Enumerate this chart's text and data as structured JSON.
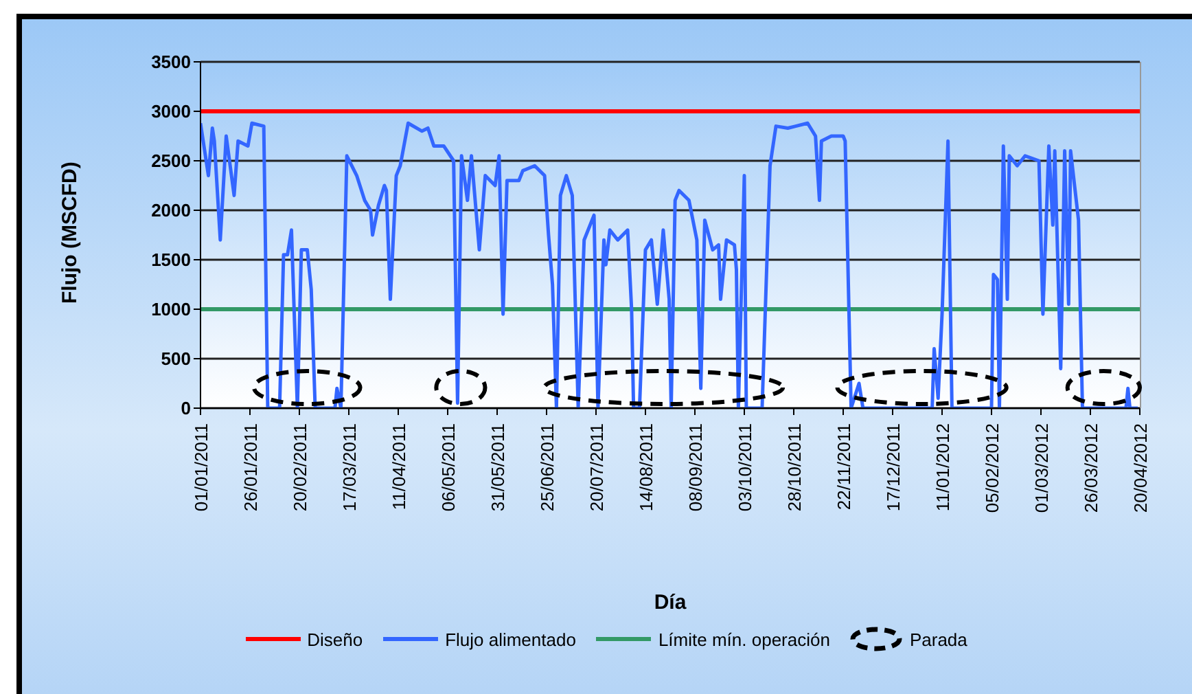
{
  "chart_data": {
    "type": "line",
    "xlabel": "Día",
    "ylabel": "Flujo  (MSCFD)",
    "x": [
      "2011-01-01",
      "2011-01-05",
      "2011-01-07",
      "2011-01-08",
      "2011-01-11",
      "2011-01-14",
      "2011-01-18",
      "2011-01-20",
      "2011-01-25",
      "2011-01-27",
      "2011-02-02",
      "2011-02-04",
      "2011-02-10",
      "2011-02-12",
      "2011-02-14",
      "2011-02-16",
      "2011-02-19",
      "2011-02-21",
      "2011-02-24",
      "2011-02-26",
      "2011-02-28",
      "2011-03-10",
      "2011-03-11",
      "2011-03-13",
      "2011-03-16",
      "2011-03-21",
      "2011-03-25",
      "2011-03-28",
      "2011-03-29",
      "2011-04-01",
      "2011-04-04",
      "2011-04-05",
      "2011-04-07",
      "2011-04-10",
      "2011-04-12",
      "2011-04-16",
      "2011-04-23",
      "2011-04-26",
      "2011-04-29",
      "2011-05-04",
      "2011-05-09",
      "2011-05-11",
      "2011-05-13",
      "2011-05-16",
      "2011-05-18",
      "2011-05-22",
      "2011-05-25",
      "2011-05-30",
      "2011-06-01",
      "2011-06-03",
      "2011-06-05",
      "2011-06-11",
      "2011-06-13",
      "2011-06-19",
      "2011-06-24",
      "2011-06-26",
      "2011-06-28",
      "2011-06-30",
      "2011-07-02",
      "2011-07-05",
      "2011-07-08",
      "2011-07-11",
      "2011-07-14",
      "2011-07-19",
      "2011-07-21",
      "2011-07-24",
      "2011-07-25",
      "2011-07-27",
      "2011-07-31",
      "2011-08-05",
      "2011-08-07",
      "2011-08-08",
      "2011-08-11",
      "2011-08-14",
      "2011-08-17",
      "2011-08-20",
      "2011-08-23",
      "2011-08-26",
      "2011-08-27",
      "2011-08-29",
      "2011-08-31",
      "2011-09-05",
      "2011-09-09",
      "2011-09-11",
      "2011-09-13",
      "2011-09-17",
      "2011-09-20",
      "2011-09-21",
      "2011-09-24",
      "2011-09-28",
      "2011-09-29",
      "2011-09-30",
      "2011-10-03",
      "2011-10-04",
      "2011-10-12",
      "2011-10-16",
      "2011-10-19",
      "2011-10-25",
      "2011-10-29",
      "2011-11-04",
      "2011-11-08",
      "2011-11-10",
      "2011-11-11",
      "2011-11-16",
      "2011-11-22",
      "2011-11-23",
      "2011-11-26",
      "2011-11-30",
      "2011-12-02",
      "2012-01-06",
      "2012-01-07",
      "2012-01-09",
      "2012-01-11",
      "2012-01-14",
      "2012-01-16",
      "2012-02-05",
      "2012-02-06",
      "2012-02-08",
      "2012-02-09",
      "2012-02-11",
      "2012-02-13",
      "2012-02-14",
      "2012-02-18",
      "2012-02-22",
      "2012-02-29",
      "2012-03-02",
      "2012-03-05",
      "2012-03-07",
      "2012-03-08",
      "2012-03-11",
      "2012-03-13",
      "2012-03-15",
      "2012-03-16",
      "2012-03-20",
      "2012-03-22",
      "2012-04-13",
      "2012-04-14",
      "2012-04-15",
      "2012-04-19"
    ],
    "series": [
      {
        "name": "Flujo alimentado",
        "color": "#3366ff",
        "values": [
          2880,
          2350,
          2830,
          2700,
          1700,
          2750,
          2150,
          2700,
          2650,
          2880,
          2850,
          0,
          0,
          1550,
          1550,
          1800,
          0,
          1600,
          1600,
          1200,
          0,
          0,
          200,
          0,
          2550,
          2350,
          2100,
          2000,
          1750,
          2050,
          2250,
          2200,
          1100,
          2350,
          2450,
          2880,
          2800,
          2830,
          2650,
          2650,
          2500,
          50,
          2550,
          2100,
          2550,
          1600,
          2350,
          2250,
          2550,
          950,
          2300,
          2300,
          2400,
          2450,
          2350,
          1750,
          1250,
          0,
          2150,
          2350,
          2150,
          0,
          1700,
          1950,
          0,
          1700,
          1450,
          1800,
          1700,
          1800,
          1000,
          0,
          0,
          1600,
          1700,
          1050,
          1800,
          1100,
          0,
          2100,
          2200,
          2100,
          1700,
          200,
          1900,
          1600,
          1650,
          1100,
          1700,
          1650,
          1400,
          0,
          2350,
          0,
          0,
          2450,
          2850,
          2830,
          2850,
          2880,
          2750,
          2100,
          2700,
          2750,
          2750,
          2700,
          0,
          250,
          0,
          0,
          600,
          100,
          950,
          2700,
          0,
          0,
          1350,
          1300,
          0,
          2650,
          1100,
          2550,
          2450,
          2550,
          2500,
          950,
          2650,
          1850,
          2600,
          400,
          2600,
          1050,
          2600,
          1900,
          0,
          0,
          200,
          0,
          0
        ]
      }
    ],
    "xlim": [
      "2011-01-01",
      "2012-04-20"
    ],
    "xticks": [
      {
        "value": "2011-01-01",
        "label": "01/01/2011"
      },
      {
        "value": "2011-01-26",
        "label": "26/01/2011"
      },
      {
        "value": "2011-02-20",
        "label": "20/02/2011"
      },
      {
        "value": "2011-03-17",
        "label": "17/03/2011"
      },
      {
        "value": "2011-04-11",
        "label": "11/04/2011"
      },
      {
        "value": "2011-05-06",
        "label": "06/05/2011"
      },
      {
        "value": "2011-05-31",
        "label": "31/05/2011"
      },
      {
        "value": "2011-06-25",
        "label": "25/06/2011"
      },
      {
        "value": "2011-07-20",
        "label": "20/07/2011"
      },
      {
        "value": "2011-08-14",
        "label": "14/08/2011"
      },
      {
        "value": "2011-09-08",
        "label": "08/09/2011"
      },
      {
        "value": "2011-10-03",
        "label": "03/10/2011"
      },
      {
        "value": "2011-10-28",
        "label": "28/10/2011"
      },
      {
        "value": "2011-11-22",
        "label": "22/11/2011"
      },
      {
        "value": "2011-12-17",
        "label": "17/12/2011"
      },
      {
        "value": "2012-01-11",
        "label": "11/01/2012"
      },
      {
        "value": "2012-02-05",
        "label": "05/02/2012"
      },
      {
        "value": "2012-03-01",
        "label": "01/03/2012"
      },
      {
        "value": "2012-03-26",
        "label": "26/03/2012"
      },
      {
        "value": "2012-04-20",
        "label": "20/04/2012"
      }
    ],
    "ylim": [
      0,
      3500
    ],
    "yticks": [
      0,
      500,
      1000,
      1500,
      2000,
      2500,
      3000,
      3500
    ],
    "grid": "y",
    "legend": "bottom",
    "marker": "none",
    "line_style": "solid",
    "ref_lines": [
      {
        "axis": "y",
        "value": 3000,
        "label": "Diseño",
        "color": "#ff0000"
      },
      {
        "axis": "y",
        "value": 1000,
        "label": "Límite mín. operación",
        "color": "#339966"
      }
    ],
    "annotations": [
      "Parada"
    ]
  }
}
